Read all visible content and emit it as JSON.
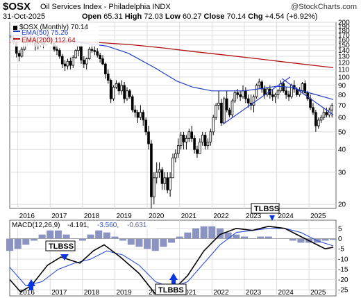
{
  "header": {
    "symbol": "$OSX",
    "name": "Oil Services Index - Philadelphia INDX",
    "copyright": "@StockCharts.com",
    "date": "31-Oct-2025",
    "open_label": "Open",
    "open": "65.31",
    "high_label": "High",
    "high": "72.03",
    "low_label": "Low",
    "low": "60.27",
    "close_label": "Close",
    "close": "70.14",
    "chg_label": "Chg",
    "chg": "+4.54 (+6.92%)"
  },
  "legend": {
    "series": "$OSX (Monthly) 70.14",
    "ema50": "EMA(50) 75.26",
    "ema200": "EMA(200) 112.64",
    "macd_label": "MACD(12,26,9)",
    "macd": "-4.191,",
    "signal": "-3.560,",
    "hist": "-0.631"
  },
  "annotations": {
    "tlbss_top": "TLBSS",
    "tlbss_mid": "TLBSS",
    "tlbbs_bottom": "TLBBS"
  },
  "colors": {
    "candle": "#000000",
    "ema50": "#1f3fbf",
    "ema200": "#b01010",
    "trendline": "#2a3ccf",
    "macd": "#000000",
    "signal": "#2f4ed6",
    "histogram": "#8a93c2",
    "arrow": "#0a36e0",
    "grid": "#dcdcdc"
  },
  "chart_data": [
    {
      "type": "candlestick",
      "title": "$OSX Oil Services Index - Philadelphia INDX",
      "scale": "log",
      "ylim": [
        19,
        200
      ],
      "yticks": [
        200,
        190,
        180,
        170,
        160,
        150,
        140,
        130,
        120,
        110,
        100,
        90,
        80,
        70,
        60,
        50,
        40,
        30,
        20
      ],
      "xticks": [
        "2016",
        "2017",
        "2018",
        "2019",
        "2020",
        "2021",
        "2022",
        "2023",
        "2024",
        "2025"
      ],
      "x_start": "2015-10",
      "x_end": "2025-10",
      "ohlc_monthly": [
        [
          168,
          178,
          158,
          165
        ],
        [
          165,
          170,
          150,
          155
        ],
        [
          155,
          158,
          128,
          135
        ],
        [
          135,
          140,
          122,
          130
        ],
        [
          130,
          146,
          128,
          142
        ],
        [
          142,
          158,
          140,
          155
        ],
        [
          155,
          165,
          148,
          160
        ],
        [
          160,
          164,
          150,
          156
        ],
        [
          156,
          164,
          148,
          158
        ],
        [
          158,
          160,
          140,
          148
        ],
        [
          148,
          156,
          142,
          150
        ],
        [
          150,
          158,
          146,
          154
        ],
        [
          154,
          160,
          144,
          150
        ],
        [
          150,
          170,
          148,
          168
        ],
        [
          168,
          172,
          158,
          162
        ],
        [
          162,
          166,
          150,
          155
        ],
        [
          155,
          158,
          138,
          142
        ],
        [
          142,
          150,
          132,
          140
        ],
        [
          140,
          144,
          126,
          130
        ],
        [
          130,
          134,
          112,
          118
        ],
        [
          118,
          124,
          108,
          115
        ],
        [
          115,
          126,
          110,
          122
        ],
        [
          122,
          128,
          110,
          116
        ],
        [
          116,
          132,
          112,
          128
        ],
        [
          128,
          142,
          126,
          140
        ],
        [
          140,
          150,
          130,
          148
        ],
        [
          148,
          154,
          118,
          124
        ],
        [
          124,
          130,
          112,
          118
        ],
        [
          118,
          128,
          110,
          126
        ],
        [
          126,
          146,
          124,
          142
        ],
        [
          142,
          150,
          136,
          140
        ],
        [
          140,
          148,
          132,
          138
        ],
        [
          138,
          144,
          128,
          132
        ],
        [
          132,
          136,
          120,
          126
        ],
        [
          126,
          132,
          116,
          118
        ],
        [
          118,
          120,
          98,
          104
        ],
        [
          104,
          110,
          92,
          96
        ],
        [
          96,
          98,
          72,
          76
        ],
        [
          76,
          90,
          74,
          88
        ],
        [
          88,
          96,
          86,
          92
        ],
        [
          92,
          94,
          80,
          84
        ],
        [
          84,
          96,
          80,
          90
        ],
        [
          90,
          94,
          72,
          76
        ],
        [
          76,
          88,
          74,
          84
        ],
        [
          84,
          86,
          76,
          78
        ],
        [
          78,
          80,
          64,
          66
        ],
        [
          66,
          70,
          60,
          64
        ],
        [
          64,
          66,
          56,
          60
        ],
        [
          60,
          70,
          58,
          64
        ],
        [
          64,
          66,
          54,
          58
        ],
        [
          58,
          60,
          48,
          50
        ],
        [
          50,
          54,
          40,
          43
        ],
        [
          43,
          45,
          19,
          22
        ],
        [
          22,
          30,
          20,
          28
        ],
        [
          28,
          34,
          26,
          30
        ],
        [
          30,
          34,
          28,
          31
        ],
        [
          31,
          32,
          24,
          26
        ],
        [
          26,
          30,
          24,
          28
        ],
        [
          28,
          30,
          23,
          24
        ],
        [
          24,
          30,
          22,
          28
        ],
        [
          28,
          38,
          28,
          36
        ],
        [
          36,
          40,
          34,
          38
        ],
        [
          38,
          46,
          36,
          42
        ],
        [
          42,
          50,
          40,
          48
        ],
        [
          48,
          50,
          40,
          44
        ],
        [
          44,
          48,
          40,
          46
        ],
        [
          46,
          52,
          44,
          50
        ],
        [
          50,
          54,
          44,
          46
        ],
        [
          46,
          48,
          38,
          40
        ],
        [
          40,
          42,
          36,
          38
        ],
        [
          38,
          46,
          38,
          44
        ],
        [
          44,
          50,
          42,
          48
        ],
        [
          48,
          50,
          40,
          42
        ],
        [
          42,
          46,
          40,
          44
        ],
        [
          44,
          52,
          42,
          50
        ],
        [
          50,
          62,
          48,
          60
        ],
        [
          60,
          72,
          58,
          70
        ],
        [
          70,
          84,
          66,
          72
        ],
        [
          72,
          76,
          54,
          56
        ],
        [
          56,
          78,
          56,
          76
        ],
        [
          76,
          84,
          64,
          66
        ],
        [
          66,
          68,
          60,
          62
        ],
        [
          62,
          76,
          60,
          74
        ],
        [
          74,
          84,
          72,
          82
        ],
        [
          82,
          86,
          76,
          80
        ],
        [
          80,
          84,
          74,
          78
        ],
        [
          78,
          90,
          76,
          84
        ],
        [
          84,
          88,
          72,
          76
        ],
        [
          76,
          80,
          68,
          72
        ],
        [
          72,
          80,
          66,
          70
        ],
        [
          70,
          80,
          64,
          78
        ],
        [
          78,
          92,
          76,
          90
        ],
        [
          90,
          98,
          86,
          94
        ],
        [
          94,
          96,
          82,
          86
        ],
        [
          86,
          90,
          76,
          80
        ],
        [
          80,
          88,
          78,
          86
        ],
        [
          86,
          90,
          76,
          80
        ],
        [
          80,
          86,
          74,
          78
        ],
        [
          78,
          82,
          72,
          80
        ],
        [
          80,
          86,
          76,
          84
        ],
        [
          84,
          96,
          82,
          92
        ],
        [
          92,
          94,
          82,
          84
        ],
        [
          84,
          88,
          76,
          80
        ],
        [
          80,
          84,
          74,
          78
        ],
        [
          78,
          92,
          76,
          90
        ],
        [
          90,
          96,
          82,
          86
        ],
        [
          86,
          88,
          78,
          80
        ],
        [
          80,
          88,
          78,
          84
        ],
        [
          84,
          94,
          82,
          92
        ],
        [
          92,
          96,
          80,
          82
        ],
        [
          82,
          84,
          74,
          76
        ],
        [
          76,
          80,
          66,
          68
        ],
        [
          68,
          72,
          62,
          64
        ],
        [
          64,
          66,
          50,
          54
        ],
        [
          54,
          60,
          52,
          58
        ],
        [
          58,
          62,
          56,
          60
        ],
        [
          60,
          68,
          58,
          64
        ],
        [
          64,
          68,
          60,
          62
        ],
        [
          62,
          68,
          60,
          66
        ],
        [
          66,
          72,
          60,
          70
        ]
      ],
      "ema50": [
        [
          "2015-10",
          170
        ],
        [
          "2016-10",
          165
        ],
        [
          "2017-10",
          156
        ],
        [
          "2018-10",
          148
        ],
        [
          "2019-06",
          135
        ],
        [
          "2020-04",
          112
        ],
        [
          "2020-12",
          95
        ],
        [
          "2021-06",
          88
        ],
        [
          "2022-01",
          84
        ],
        [
          "2022-06",
          84
        ],
        [
          "2023-01",
          84
        ],
        [
          "2023-06",
          86
        ],
        [
          "2024-01",
          89
        ],
        [
          "2024-06",
          88
        ],
        [
          "2025-01",
          82
        ],
        [
          "2025-10",
          75.26
        ]
      ],
      "ema200": [
        [
          "2015-10",
          155
        ],
        [
          "2016-06",
          157
        ],
        [
          "2017-06",
          157
        ],
        [
          "2018-06",
          155
        ],
        [
          "2019-06",
          151
        ],
        [
          "2020-06",
          145
        ],
        [
          "2021-06",
          138
        ],
        [
          "2022-06",
          132
        ],
        [
          "2023-06",
          126
        ],
        [
          "2024-06",
          120
        ],
        [
          "2025-10",
          112.64
        ]
      ],
      "trendlines": [
        {
          "from": [
            "2022-05",
            55
          ],
          "to": [
            "2024-06",
            100
          ]
        },
        {
          "from": [
            "2024-03",
            98
          ],
          "to": [
            "2025-10",
            62
          ]
        }
      ]
    },
    {
      "type": "line",
      "title": "MACD(12,26,9)",
      "ylim": [
        -28,
        9
      ],
      "yticks": [
        5,
        0,
        -5,
        -10,
        -15,
        -20,
        -25
      ],
      "xticks": [
        "2016",
        "2017",
        "2018",
        "2019",
        "2020",
        "2021",
        "2022",
        "2023",
        "2024",
        "2025"
      ],
      "x_start": "2015-10",
      "x_end": "2025-10",
      "series": [
        {
          "name": "MACD",
          "points": [
            [
              "2015-10",
              -20
            ],
            [
              "2016-02",
              -26
            ],
            [
              "2016-06",
              -23
            ],
            [
              "2016-12",
              -13
            ],
            [
              "2017-05",
              -9
            ],
            [
              "2017-12",
              -12
            ],
            [
              "2018-05",
              -6
            ],
            [
              "2018-09",
              -3
            ],
            [
              "2019-03",
              -9
            ],
            [
              "2019-10",
              -17
            ],
            [
              "2020-04",
              -27
            ],
            [
              "2020-10",
              -26
            ],
            [
              "2021-04",
              -18
            ],
            [
              "2021-10",
              -6
            ],
            [
              "2022-04",
              2
            ],
            [
              "2022-10",
              5
            ],
            [
              "2023-04",
              4
            ],
            [
              "2023-10",
              6
            ],
            [
              "2024-04",
              5
            ],
            [
              "2024-10",
              1
            ],
            [
              "2025-04",
              -3
            ],
            [
              "2025-07",
              -5
            ],
            [
              "2025-10",
              -4.191
            ]
          ]
        },
        {
          "name": "Signal",
          "points": [
            [
              "2015-10",
              -14
            ],
            [
              "2016-04",
              -23
            ],
            [
              "2016-10",
              -21
            ],
            [
              "2017-04",
              -15
            ],
            [
              "2017-10",
              -12
            ],
            [
              "2018-04",
              -10
            ],
            [
              "2018-10",
              -6
            ],
            [
              "2019-04",
              -8
            ],
            [
              "2019-10",
              -13
            ],
            [
              "2020-04",
              -21
            ],
            [
              "2020-10",
              -24
            ],
            [
              "2021-04",
              -21
            ],
            [
              "2021-10",
              -12
            ],
            [
              "2022-04",
              -3
            ],
            [
              "2022-10",
              3
            ],
            [
              "2023-04",
              4
            ],
            [
              "2023-10",
              5
            ],
            [
              "2024-04",
              5
            ],
            [
              "2024-10",
              3
            ],
            [
              "2025-04",
              -1
            ],
            [
              "2025-10",
              -3.56
            ]
          ]
        },
        {
          "name": "Histogram",
          "points": [
            [
              "2015-10",
              -6
            ],
            [
              "2016-01",
              -5
            ],
            [
              "2016-04",
              -3
            ],
            [
              "2016-07",
              -1
            ],
            [
              "2016-10",
              2
            ],
            [
              "2017-01",
              4
            ],
            [
              "2017-04",
              4
            ],
            [
              "2017-07",
              2
            ],
            [
              "2017-10",
              0
            ],
            [
              "2018-01",
              -1
            ],
            [
              "2018-04",
              2
            ],
            [
              "2018-07",
              4
            ],
            [
              "2018-10",
              3
            ],
            [
              "2019-01",
              1
            ],
            [
              "2019-04",
              -1
            ],
            [
              "2019-07",
              -3
            ],
            [
              "2019-10",
              -4
            ],
            [
              "2020-01",
              -5
            ],
            [
              "2020-04",
              -6
            ],
            [
              "2020-07",
              -4
            ],
            [
              "2020-10",
              -2
            ],
            [
              "2021-01",
              1
            ],
            [
              "2021-04",
              3
            ],
            [
              "2021-07",
              5
            ],
            [
              "2021-10",
              6
            ],
            [
              "2022-01",
              6
            ],
            [
              "2022-04",
              5
            ],
            [
              "2022-07",
              3
            ],
            [
              "2022-10",
              2
            ],
            [
              "2023-01",
              1
            ],
            [
              "2023-04",
              0
            ],
            [
              "2023-07",
              1
            ],
            [
              "2023-10",
              1
            ],
            [
              "2024-01",
              0
            ],
            [
              "2024-04",
              0
            ],
            [
              "2024-07",
              -1
            ],
            [
              "2024-10",
              -2
            ],
            [
              "2025-01",
              -2
            ],
            [
              "2025-04",
              -2
            ],
            [
              "2025-07",
              -1
            ],
            [
              "2025-10",
              -0.631
            ]
          ]
        }
      ]
    }
  ]
}
